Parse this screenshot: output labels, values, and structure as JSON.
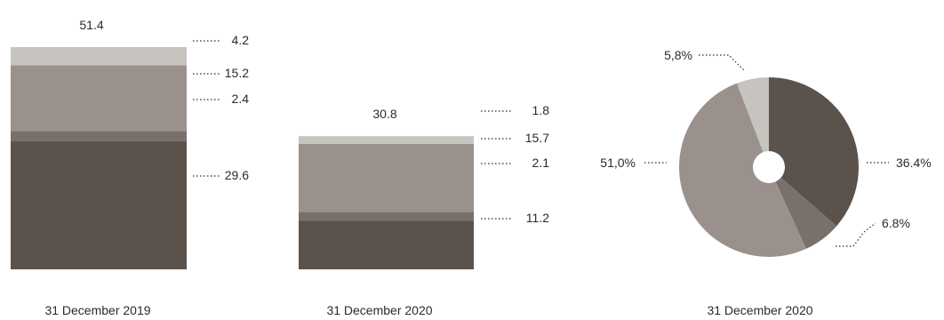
{
  "colors": {
    "dark": "#5b524c",
    "mid": "#7a706b",
    "light_mid": "#9b918c",
    "light": "#c7c3bf"
  },
  "chart_data": [
    {
      "type": "bar",
      "stacked": true,
      "category": "31 December 2019",
      "total_label": "51.4",
      "total": 51.4,
      "segments": [
        {
          "value": 29.6,
          "label": "29.6",
          "color": "#5b524c"
        },
        {
          "value": 2.4,
          "label": "2.4",
          "color": "#7a706b"
        },
        {
          "value": 15.2,
          "label": "15.2",
          "color": "#9b918c"
        },
        {
          "value": 4.2,
          "label": "4.2",
          "color": "#c7c3bf"
        }
      ]
    },
    {
      "type": "bar",
      "stacked": true,
      "category": "31 December 2020",
      "total_label": "30.8",
      "total": 30.8,
      "segments": [
        {
          "value": 11.2,
          "label": "11.2",
          "color": "#5b524c"
        },
        {
          "value": 2.1,
          "label": "2.1",
          "color": "#7a706b"
        },
        {
          "value": 15.7,
          "label": "15.7",
          "color": "#9b918c"
        },
        {
          "value": 1.8,
          "label": "1.8",
          "color": "#c7c3bf"
        }
      ]
    },
    {
      "type": "pie",
      "donut": true,
      "category": "31 December 2020",
      "slices": [
        {
          "value": 36.4,
          "label": "36.4%",
          "color": "#5b524c"
        },
        {
          "value": 6.8,
          "label": "6.8%",
          "color": "#7a706b"
        },
        {
          "value": 51.0,
          "label": "51,0%",
          "color": "#9b918c"
        },
        {
          "value": 5.8,
          "label": "5,8%",
          "color": "#c7c3bf"
        }
      ]
    }
  ]
}
